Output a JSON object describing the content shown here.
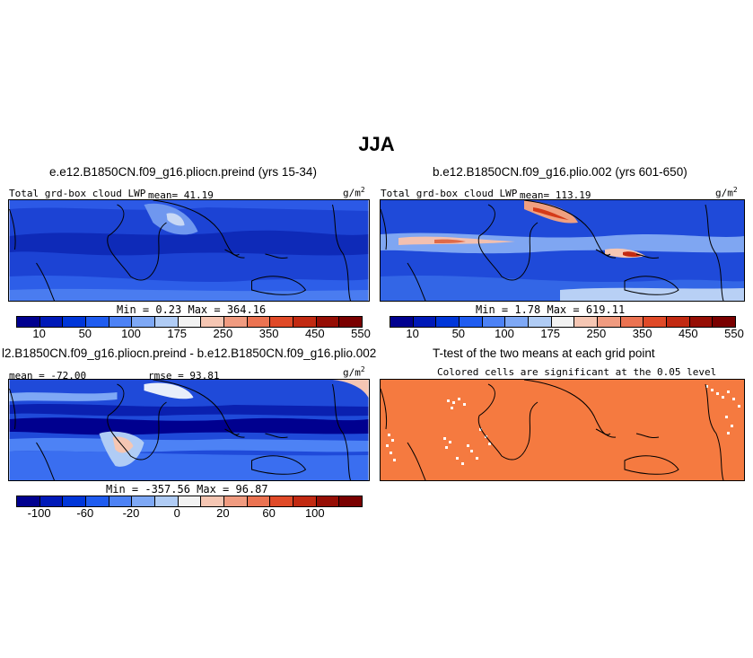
{
  "season": "JJA",
  "panels": {
    "top_left": {
      "title": "e.e12.B1850CN.f09_g16.pliocn.preind (yrs 15-34)",
      "field": "Total grd-box cloud LWP",
      "mean": "mean=  41.19",
      "units": "g/m",
      "units_sup": "2",
      "minmax": "Min =   0.23 Max = 364.16"
    },
    "top_right": {
      "title": "b.e12.B1850CN.f09_g16.plio.002 (yrs 601-650)",
      "field": "Total grd-box cloud LWP",
      "mean": "mean= 113.19",
      "units": "g/m",
      "units_sup": "2",
      "minmax": "Min =   1.78 Max = 619.11"
    },
    "bottom_left": {
      "title": "l2.B1850CN.f09_g16.pliocn.preind - b.e12.B1850CN.f09_g16.plio.002",
      "mean": "mean = -72.00",
      "rmse": "rmse =  93.81",
      "units": "g/m",
      "units_sup": "2",
      "minmax": "Min = -357.56 Max =  96.87"
    },
    "bottom_right": {
      "title": "T-test of the two means at each grid point",
      "subtitle": "Colored cells are significant at the 0.05 level"
    }
  },
  "colorbars": {
    "lwp": {
      "colors": [
        "#00008f",
        "#0019b8",
        "#0036d9",
        "#1f5cf0",
        "#4d82f5",
        "#7ea8f5",
        "#b0ccf5",
        "#f2f2f2",
        "#f5c6b3",
        "#f09b80",
        "#eb7352",
        "#e04a28",
        "#c22a12",
        "#960e05",
        "#7a0000"
      ],
      "ticks": [
        "10",
        "50",
        "100",
        "175",
        "250",
        "350",
        "450",
        "550"
      ]
    },
    "diff": {
      "colors": [
        "#00008f",
        "#0019b8",
        "#0036d9",
        "#1f5cf0",
        "#4d82f5",
        "#7ea8f5",
        "#b0ccf5",
        "#f2f2f2",
        "#f5c6b3",
        "#f09b80",
        "#eb7352",
        "#e04a28",
        "#c22a12",
        "#960e05",
        "#7a0000"
      ],
      "ticks": [
        "-100",
        "-60",
        "-20",
        "0",
        "20",
        "60",
        "100"
      ]
    }
  },
  "colors": {
    "ttest_fill": "#f57a40",
    "map_base": "#1f4ad9"
  }
}
